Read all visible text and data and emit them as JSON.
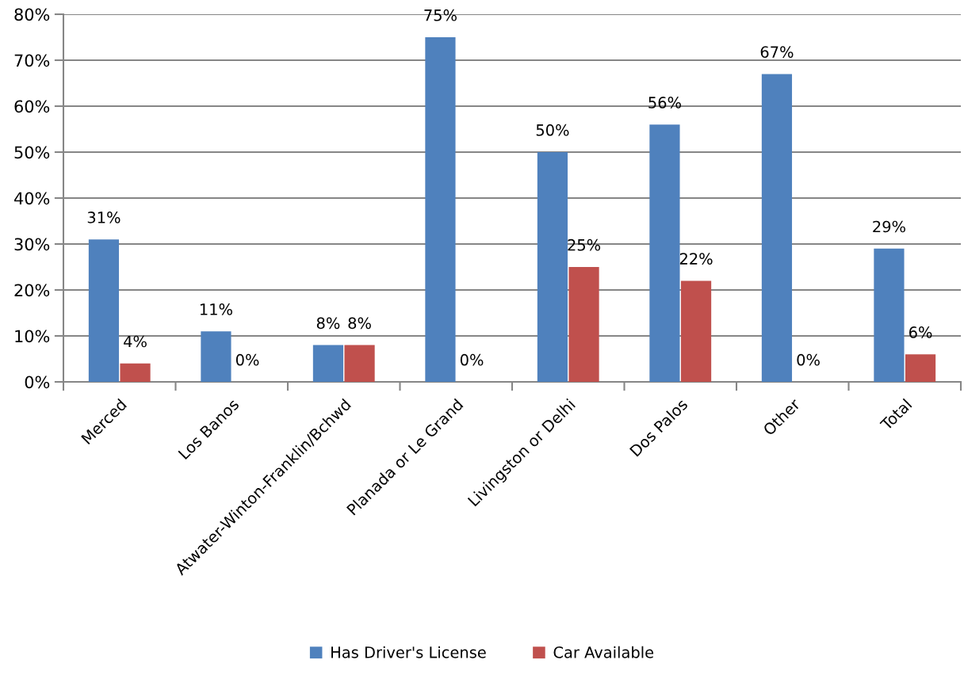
{
  "chart_data": {
    "type": "bar",
    "categories": [
      "Merced",
      "Los Banos",
      "Atwater-Winton-Franklin/Bchwd",
      "Planada or Le Grand",
      "Livingston or Delhi",
      "Dos Palos",
      "Other",
      "Total"
    ],
    "series": [
      {
        "name": "Has Driver's License",
        "color": "#4f81bd",
        "values": [
          31,
          11,
          8,
          75,
          50,
          56,
          67,
          29
        ],
        "value_labels": [
          "31%",
          "11%",
          "8%",
          "75%",
          "50%",
          "56%",
          "67%",
          "29%"
        ]
      },
      {
        "name": "Car Available",
        "color": "#c0504d",
        "values": [
          4,
          0,
          8,
          0,
          25,
          22,
          0,
          6
        ],
        "value_labels": [
          "4%",
          "0%",
          "8%",
          "0%",
          "25%",
          "22%",
          "0%",
          "6%"
        ]
      }
    ],
    "ylim": [
      0,
      80
    ],
    "yticks": [
      {
        "value": 0,
        "label": "0%"
      },
      {
        "value": 10,
        "label": "10%"
      },
      {
        "value": 20,
        "label": "20%"
      },
      {
        "value": 30,
        "label": "30%"
      },
      {
        "value": 40,
        "label": "40%"
      },
      {
        "value": 50,
        "label": "50%"
      },
      {
        "value": 60,
        "label": "60%"
      },
      {
        "value": 70,
        "label": "70%"
      },
      {
        "value": 80,
        "label": "80%"
      }
    ],
    "grid": "y",
    "legend": "bottom"
  }
}
